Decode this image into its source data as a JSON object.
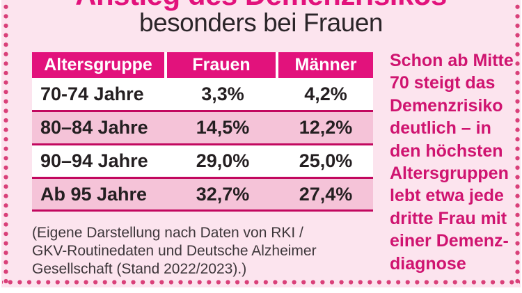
{
  "page": {
    "title_line1": "Anstieg des Demenzrisikos",
    "title_line2": "besonders bei Frauen"
  },
  "table": {
    "headers": [
      "Altersgruppe",
      "Frauen",
      "Männer"
    ],
    "rows": [
      {
        "age": "70-74 Jahre",
        "women": "3,3%",
        "men": "4,2%"
      },
      {
        "age": "80–84 Jahre",
        "women": "14,5%",
        "men": "12,2%"
      },
      {
        "age": "90–94 Jahre",
        "women": "29,0%",
        "men": "25,0%"
      },
      {
        "age": "Ab 95 Jahre",
        "women": "32,7%",
        "men": "27,4%"
      }
    ]
  },
  "footnote": "(Eigene Darstellung nach Daten von RKI /\nGKV-Routinedaten und Deutsche Alzheimer\nGesellschaft (Stand 2022/2023).)",
  "sidebar_note": "Schon ab Mitte\n70 steigt das\nDemenzrisiko\ndeutlich – in\nden höchsten\nAltersgruppen\nlebt etwa jede\ndritte Frau mit\neiner Demenz-\ndiagnose",
  "colors": {
    "magenta_header": "#e2127c",
    "divider": "#c2085f",
    "row_pink": "#f5c3d8",
    "background_pink": "#fce4ee",
    "border_dots": "#d94079",
    "sidebar_text": "#cf1470",
    "text_dark": "#241f21"
  },
  "chart_data": {
    "type": "table",
    "title": "Anstieg des Demenzrisikos besonders bei Frauen",
    "categories": [
      "70-74 Jahre",
      "80–84 Jahre",
      "90–94 Jahre",
      "Ab 95 Jahre"
    ],
    "series": [
      {
        "name": "Frauen",
        "values": [
          3.3,
          14.5,
          29.0,
          32.7
        ],
        "unit": "%"
      },
      {
        "name": "Männer",
        "values": [
          4.2,
          12.2,
          25.0,
          27.4
        ],
        "unit": "%"
      }
    ],
    "source": "(Eigene Darstellung nach Daten von RKI / GKV-Routinedaten und Deutsche Alzheimer Gesellschaft (Stand 2022/2023).)",
    "annotation": "Schon ab Mitte 70 steigt das Demenzrisiko deutlich – in den höchsten Altersgruppen lebt etwa jede dritte Frau mit einer Demenzdiagnose"
  }
}
